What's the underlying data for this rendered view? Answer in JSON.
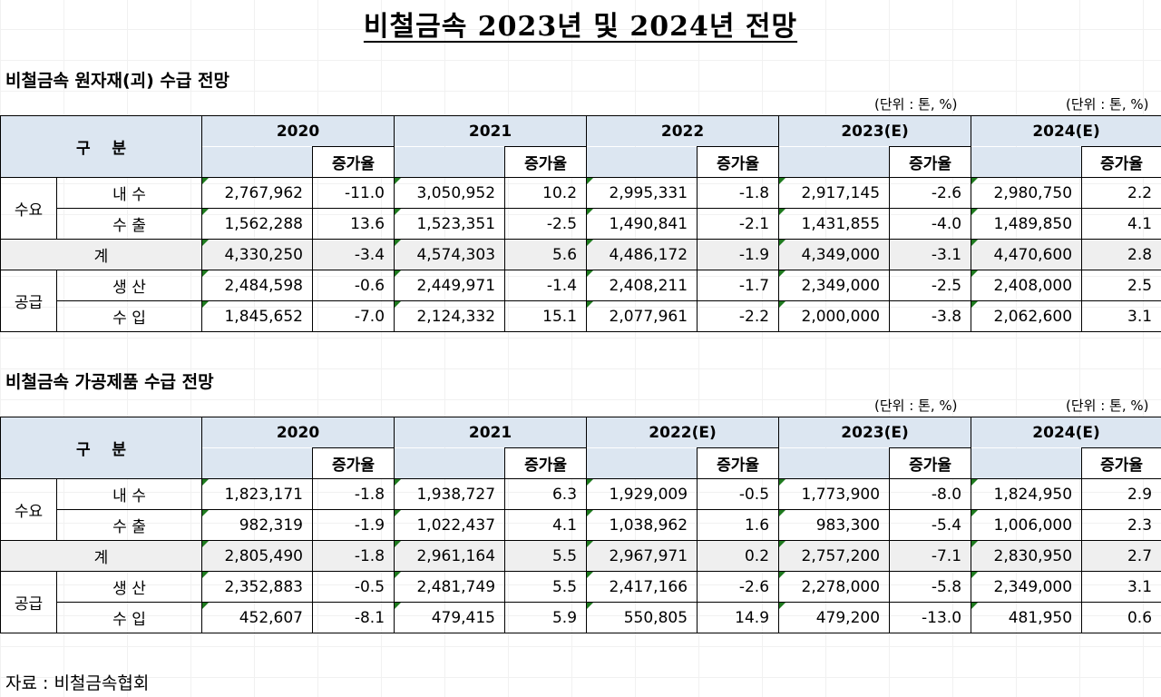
{
  "title": "비철금속 2023년 및 2024년 전망",
  "tables": [
    {
      "section_title": "비철금속 원자재(괴) 수급 전망",
      "unit_left": "(단위 : 톤, %)",
      "unit_right": "(단위 : 톤, %)",
      "category_header": "구    분",
      "growth_header": "증가율",
      "years": [
        "2020",
        "2021",
        "2022",
        "2023(E)",
        "2024(E)"
      ],
      "demand_label": "수요",
      "supply_label": "공급",
      "total_label": "계",
      "rows": [
        {
          "label": "내 수",
          "values": [
            "2,767,962",
            "-11.0",
            "3,050,952",
            "10.2",
            "2,995,331",
            "-1.8",
            "2,917,145",
            "-2.6",
            "2,980,750",
            "2.2"
          ]
        },
        {
          "label": "수 출",
          "values": [
            "1,562,288",
            "13.6",
            "1,523,351",
            "-2.5",
            "1,490,841",
            "-2.1",
            "1,431,855",
            "-4.0",
            "1,489,850",
            "4.1"
          ]
        },
        {
          "label": "계",
          "values": [
            "4,330,250",
            "-3.4",
            "4,574,303",
            "5.6",
            "4,486,172",
            "-1.9",
            "4,349,000",
            "-3.1",
            "4,470,600",
            "2.8"
          ]
        },
        {
          "label": "생 산",
          "values": [
            "2,484,598",
            "-0.6",
            "2,449,971",
            "-1.4",
            "2,408,211",
            "-1.7",
            "2,349,000",
            "-2.5",
            "2,408,000",
            "2.5"
          ]
        },
        {
          "label": "수 입",
          "values": [
            "1,845,652",
            "-7.0",
            "2,124,332",
            "15.1",
            "2,077,961",
            "-2.2",
            "2,000,000",
            "-3.8",
            "2,062,600",
            "3.1"
          ]
        }
      ]
    },
    {
      "section_title": "비철금속 가공제품 수급 전망",
      "unit_left": "(단위 : 톤, %)",
      "unit_right": "(단위 : 톤, %)",
      "category_header": "구    분",
      "growth_header": "증가율",
      "years": [
        "2020",
        "2021",
        "2022(E)",
        "2023(E)",
        "2024(E)"
      ],
      "demand_label": "수요",
      "supply_label": "공급",
      "total_label": "계",
      "rows": [
        {
          "label": "내 수",
          "values": [
            "1,823,171",
            "-1.8",
            "1,938,727",
            "6.3",
            "1,929,009",
            "-0.5",
            "1,773,900",
            "-8.0",
            "1,824,950",
            "2.9"
          ]
        },
        {
          "label": "수 출",
          "values": [
            "982,319",
            "-1.9",
            "1,022,437",
            "4.1",
            "1,038,962",
            "1.6",
            "983,300",
            "-5.4",
            "1,006,000",
            "2.3"
          ]
        },
        {
          "label": "계",
          "values": [
            "2,805,490",
            "-1.8",
            "2,961,164",
            "5.5",
            "2,967,971",
            "0.2",
            "2,757,200",
            "-7.1",
            "2,830,950",
            "2.7"
          ]
        },
        {
          "label": "생 산",
          "values": [
            "2,352,883",
            "-0.5",
            "2,481,749",
            "5.5",
            "2,417,166",
            "-2.6",
            "2,278,000",
            "-5.8",
            "2,349,000",
            "3.1"
          ]
        },
        {
          "label": "수 입",
          "values": [
            "452,607",
            "-8.1",
            "479,415",
            "5.9",
            "550,805",
            "14.9",
            "479,200",
            "-13.0",
            "481,950",
            "0.6"
          ]
        }
      ]
    }
  ],
  "source": "자료 : 비철금속협회"
}
